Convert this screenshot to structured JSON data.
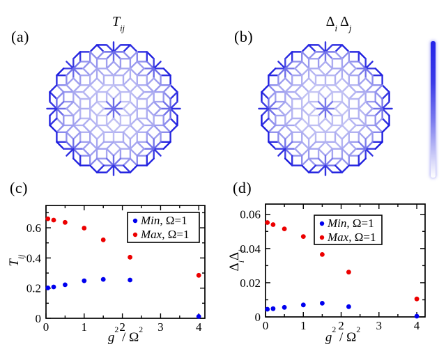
{
  "figure": {
    "background": "#ffffff",
    "blue": "#0000ee",
    "red": "#ec0000"
  },
  "panels": {
    "a": {
      "label": "(a)",
      "title": {
        "base": "T",
        "sub": "ij"
      }
    },
    "b": {
      "label": "(b)",
      "title": {
        "d1": "Δ",
        "s1": "i",
        "d2": "Δ",
        "s2": "j"
      }
    }
  },
  "networks": {
    "type": "ammann-beenker-octagonal-quasicrystal",
    "edge_colormap": {
      "low": "#d7d7f6",
      "high": "#1414de"
    }
  },
  "colorbar": {
    "orientation": "vertical",
    "top_color": "#2525e8",
    "bottom_color": "#ffffff"
  },
  "chart_data": [
    {
      "id": "c",
      "type": "scatter",
      "panel_label": "(c)",
      "ylabel_parts": {
        "base": "T",
        "sub": "ij"
      },
      "xlabel_parts": {
        "base": "g",
        "sup": "2",
        "slash": " / ",
        "base2": "Ω",
        "sup2": "2"
      },
      "xlim": [
        0,
        4.16
      ],
      "ylim": [
        0,
        0.748
      ],
      "xtick_vals": [
        0,
        1,
        2,
        3,
        4
      ],
      "xtick_labels": [
        "0",
        "1",
        "2",
        "3",
        "4"
      ],
      "ytick_vals": [
        0,
        0.2,
        0.4,
        0.6
      ],
      "ytick_labels": [
        "0",
        "0.2",
        "0.4",
        "0.6"
      ],
      "xminor": 0.5,
      "yminor": 0.1,
      "grid": false,
      "legend_position": "upper right",
      "series": [
        {
          "name": "Min, Ω=1",
          "legend_italic": "Min",
          "legend_rest": ", Ω=1",
          "color": "#0000ee",
          "x": [
            0.05,
            0.2,
            0.5,
            1.0,
            1.5,
            2.2,
            4.0
          ],
          "y": [
            0.202,
            0.208,
            0.222,
            0.249,
            0.258,
            0.254,
            0.012
          ]
        },
        {
          "name": "Max, Ω=1",
          "legend_italic": "Max",
          "legend_rest": ",  Ω=1",
          "color": "#ec0000",
          "x": [
            0.05,
            0.2,
            0.5,
            1.0,
            1.5,
            2.2,
            4.0
          ],
          "y": [
            0.66,
            0.651,
            0.636,
            0.598,
            0.52,
            0.405,
            0.285
          ]
        }
      ]
    },
    {
      "id": "d",
      "type": "scatter",
      "panel_label": "(d)",
      "ylabel_parts": {
        "d1": "Δ",
        "s1": "i",
        "d2": "Δ",
        "s2": "j"
      },
      "xlabel_parts": {
        "base": "g",
        "sup": "2",
        "slash": " / ",
        "base2": "Ω",
        "sup2": "2"
      },
      "xlim": [
        0,
        4.22
      ],
      "ylim": [
        0,
        0.066
      ],
      "xtick_vals": [
        0,
        1,
        2,
        3,
        4
      ],
      "xtick_labels": [
        "0",
        "1",
        "2",
        "3",
        "4"
      ],
      "ytick_vals": [
        0,
        0.02,
        0.04,
        0.06
      ],
      "ytick_labels": [
        "0",
        "0.02",
        "0.04",
        "0.06"
      ],
      "xminor": 0.5,
      "yminor": 0.01,
      "grid": false,
      "legend_position": "upper center",
      "series": [
        {
          "name": "Min, Ω=1",
          "legend_italic": "Min",
          "legend_rest": ", Ω=1",
          "color": "#0000ee",
          "x": [
            0.05,
            0.2,
            0.5,
            1.0,
            1.5,
            2.2,
            4.0
          ],
          "y": [
            0.0045,
            0.0048,
            0.0056,
            0.007,
            0.008,
            0.006,
            0.0004
          ]
        },
        {
          "name": "Max, Ω=1",
          "legend_italic": "Max",
          "legend_rest": ", Ω=1",
          "color": "#ec0000",
          "x": [
            0.05,
            0.2,
            0.5,
            1.0,
            1.5,
            2.2,
            4.0
          ],
          "y": [
            0.0552,
            0.054,
            0.0515,
            0.047,
            0.0365,
            0.0262,
            0.0105
          ]
        }
      ]
    }
  ]
}
